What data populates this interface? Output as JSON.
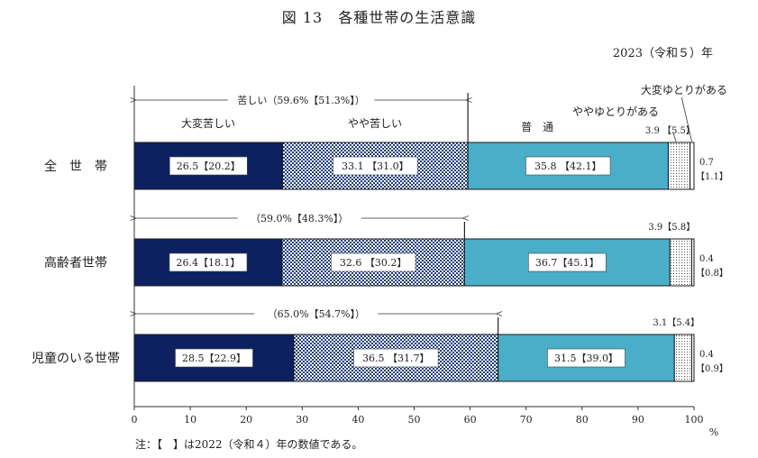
{
  "title": "図 13　各種世帯の生活意識",
  "year_label": "2023（令和５）年",
  "note": "注：【　】は2022（令和４）年の数値である。",
  "chart_data": {
    "type": "bar",
    "orientation": "horizontal",
    "stacked": true,
    "unit": "%",
    "xlim": [
      0,
      100
    ],
    "x_ticks": [
      "0",
      "10",
      "20",
      "30",
      "40",
      "50",
      "60",
      "70",
      "80",
      "90",
      "100"
    ],
    "categories": [
      "全　世　帯",
      "高齢者世帯",
      "児童のいる世帯"
    ],
    "series": [
      {
        "name": "大変苦しい",
        "values": [
          26.5,
          26.4,
          28.5
        ],
        "prev": [
          20.2,
          18.1,
          22.9
        ],
        "color": "#0d2160"
      },
      {
        "name": "やや苦しい",
        "values": [
          33.1,
          32.6,
          36.5
        ],
        "prev": [
          31.0,
          30.2,
          31.7
        ],
        "color": "#2a4a8a"
      },
      {
        "name": "普　通",
        "values": [
          35.8,
          36.7,
          31.5
        ],
        "prev": [
          42.1,
          45.1,
          39.0
        ],
        "color": "#4aaec8"
      },
      {
        "name": "ややゆとりがある",
        "values": [
          3.9,
          3.9,
          3.1
        ],
        "prev": [
          5.5,
          5.8,
          5.4
        ],
        "color": "#ffffff"
      },
      {
        "name": "大変ゆとりがある",
        "values": [
          0.7,
          0.4,
          0.4
        ],
        "prev": [
          1.1,
          0.8,
          0.9
        ],
        "color": "#ffffff"
      }
    ],
    "labels": {
      "s0": [
        "26.5【20.2】",
        "26.4【18.1】",
        "28.5【22.9】"
      ],
      "s1": [
        "33.1 【31.0】",
        "32.6 【30.2】",
        "36.5 【31.7】"
      ],
      "s2": [
        "35.8 【42.1】",
        "36.7【45.1】",
        "31.5【39.0】"
      ],
      "s3": [
        "3.9 【5.5】",
        "3.9【5.8】",
        "3.1【5.4】"
      ],
      "s4a": [
        "0.7",
        "0.4",
        "0.4"
      ],
      "s4b": [
        "【1.1】",
        "【0.8】",
        "【0.9】"
      ]
    },
    "hardship_totals": [
      "苦しい（59.6%【51.3%】）",
      "（59.0%【48.3%】）",
      "（65.0%【54.7%】）"
    ],
    "hardship_values": [
      59.6,
      59.0,
      65.0
    ]
  }
}
